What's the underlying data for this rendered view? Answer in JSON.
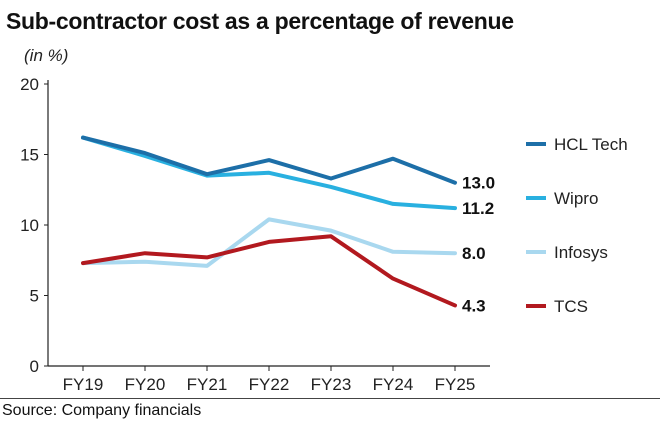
{
  "chart_data": {
    "type": "line",
    "title": "Sub-contractor cost as a percentage of revenue",
    "subtitle": "(in %)",
    "xlabel": "",
    "ylabel": "",
    "categories": [
      "FY19",
      "FY20",
      "FY21",
      "FY22",
      "FY23",
      "FY24",
      "FY25"
    ],
    "yticks": [
      "0",
      "5",
      "10",
      "15",
      "20"
    ],
    "ylim": [
      0,
      20
    ],
    "grid": false,
    "legend": "right",
    "series": [
      {
        "name": "HCL Tech",
        "color": "#1d6fa8",
        "values": [
          16.2,
          15.1,
          13.6,
          14.6,
          13.3,
          14.7,
          13.0
        ],
        "end_label": "13.0"
      },
      {
        "name": "Wipro",
        "color": "#29b0e0",
        "values": [
          16.2,
          14.9,
          13.5,
          13.7,
          12.7,
          11.5,
          11.2
        ],
        "end_label": "11.2"
      },
      {
        "name": "Infosys",
        "color": "#a9d8ef",
        "values": [
          7.3,
          7.4,
          7.1,
          10.4,
          9.6,
          8.1,
          8.0
        ],
        "end_label": "8.0"
      },
      {
        "name": "TCS",
        "color": "#b2191f",
        "values": [
          7.3,
          8.0,
          7.7,
          8.8,
          9.2,
          6.2,
          4.3
        ],
        "end_label": "4.3"
      }
    ],
    "source": "Source: Company financials"
  }
}
